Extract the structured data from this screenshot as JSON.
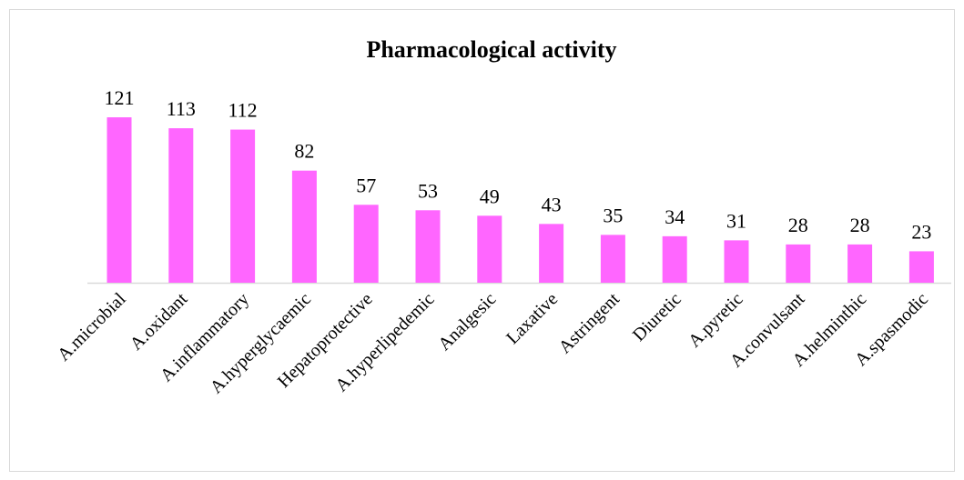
{
  "chart_data": {
    "type": "bar",
    "title": "Pharmacological activity",
    "categories": [
      "A.microbial",
      "A.oxidant",
      "A.inflammatory",
      "A.hyperglycaemic",
      "Hepatoprotective",
      "A.hyperlipedemic",
      "Analgesic",
      "Laxative",
      "Astringent",
      "Diuretic",
      "A.pyretic",
      "A.convulsant",
      "A.helminthic",
      "A.spasmodic"
    ],
    "values": [
      121,
      113,
      112,
      82,
      57,
      53,
      49,
      43,
      35,
      34,
      31,
      28,
      28,
      23
    ],
    "color": "#ff66ff",
    "ylim": [
      0,
      130
    ]
  }
}
